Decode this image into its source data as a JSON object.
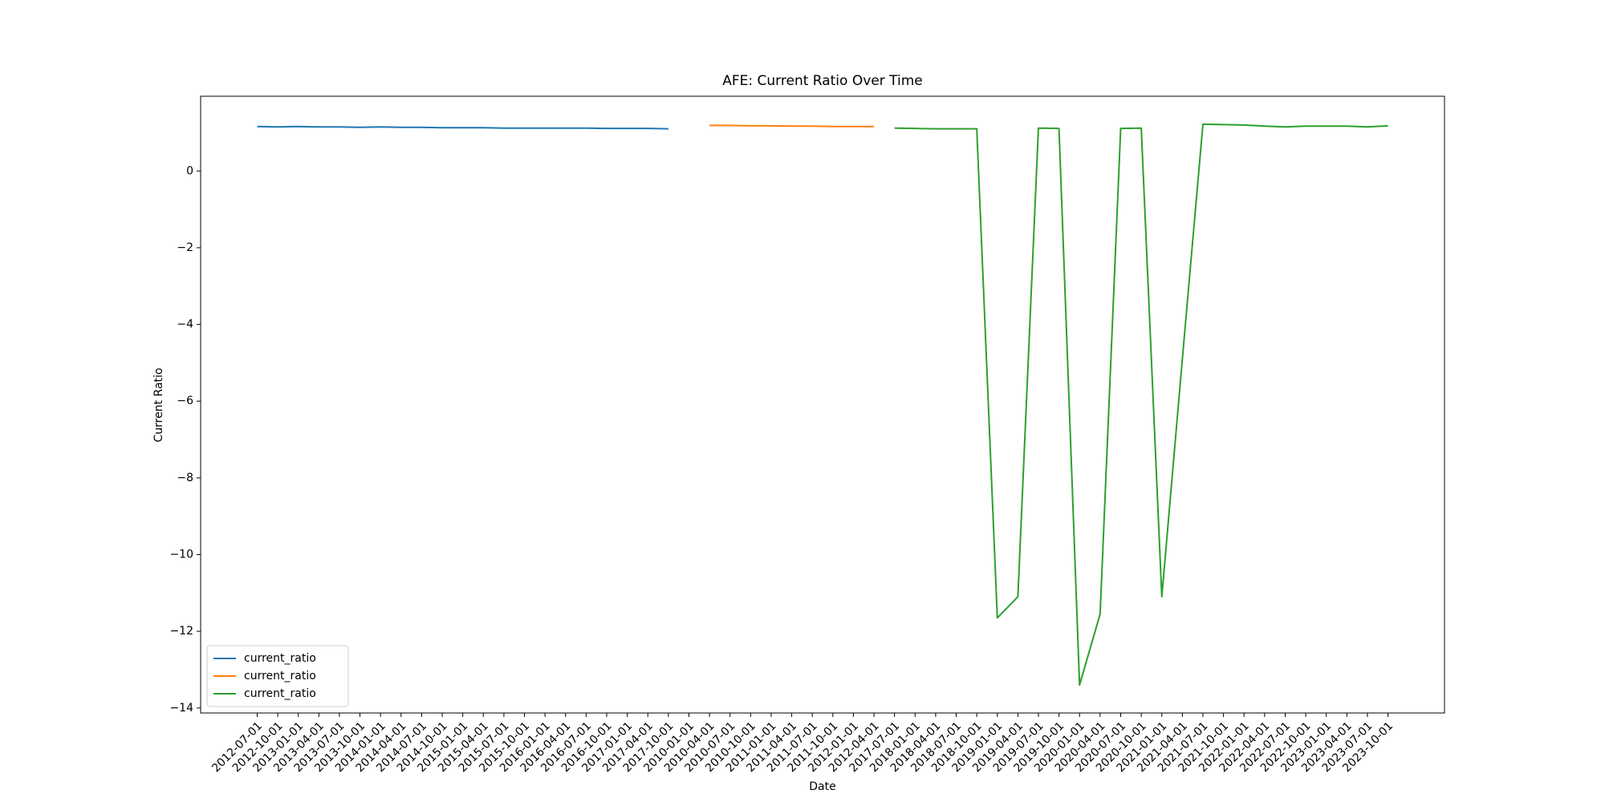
{
  "chart_data": {
    "type": "line",
    "title": "AFE: Current Ratio Over Time",
    "xlabel": "Date",
    "ylabel": "Current Ratio",
    "categories": [
      "2012-07-01",
      "2012-10-01",
      "2013-01-01",
      "2013-04-01",
      "2013-07-01",
      "2013-10-01",
      "2014-01-01",
      "2014-04-01",
      "2014-07-01",
      "2014-10-01",
      "2015-01-01",
      "2015-04-01",
      "2015-07-01",
      "2015-10-01",
      "2016-01-01",
      "2016-04-01",
      "2016-07-01",
      "2016-10-01",
      "2017-01-01",
      "2017-04-01",
      "2017-10-01",
      "2010-01-01",
      "2010-04-01",
      "2010-07-01",
      "2010-10-01",
      "2011-01-01",
      "2011-04-01",
      "2011-07-01",
      "2011-10-01",
      "2012-01-01",
      "2012-04-01",
      "2017-07-01",
      "2018-01-01",
      "2018-04-01",
      "2018-07-01",
      "2018-10-01",
      "2019-01-01",
      "2019-04-01",
      "2019-07-01",
      "2019-10-01",
      "2020-01-01",
      "2020-04-01",
      "2020-07-01",
      "2020-10-01",
      "2021-01-01",
      "2021-04-01",
      "2021-07-01",
      "2021-10-01",
      "2022-01-01",
      "2022-04-01",
      "2022-07-01",
      "2022-10-01",
      "2023-01-01",
      "2023-04-01",
      "2023-07-01",
      "2023-10-01"
    ],
    "series": [
      {
        "name": "current_ratio",
        "color": "#1f77b4",
        "values": [
          1.16,
          1.15,
          1.16,
          1.15,
          1.15,
          1.14,
          1.15,
          1.14,
          1.14,
          1.13,
          1.13,
          1.13,
          1.12,
          1.12,
          1.12,
          1.12,
          1.12,
          1.11,
          1.11,
          1.11,
          1.1,
          null,
          null,
          null,
          null,
          null,
          null,
          null,
          null,
          null,
          null,
          null,
          null,
          null,
          null,
          null,
          null,
          null,
          null,
          null,
          null,
          null,
          null,
          null,
          null,
          null,
          null,
          null,
          null,
          null,
          null,
          null,
          null,
          null,
          null,
          null
        ]
      },
      {
        "name": "current_ratio",
        "color": "#ff7f0e",
        "values": [
          null,
          null,
          null,
          null,
          null,
          null,
          null,
          null,
          null,
          null,
          null,
          null,
          null,
          null,
          null,
          null,
          null,
          null,
          null,
          null,
          null,
          null,
          1.19,
          1.19,
          1.18,
          1.18,
          1.17,
          1.17,
          1.16,
          1.16,
          1.16,
          null,
          null,
          null,
          null,
          null,
          null,
          null,
          null,
          null,
          null,
          null,
          null,
          null,
          null,
          null,
          null,
          null,
          null,
          null,
          null,
          null,
          null,
          null,
          null,
          null
        ]
      },
      {
        "name": "current_ratio",
        "color": "#2ca02c",
        "values": [
          null,
          null,
          null,
          null,
          null,
          null,
          null,
          null,
          null,
          null,
          null,
          null,
          null,
          null,
          null,
          null,
          null,
          null,
          null,
          null,
          null,
          null,
          null,
          null,
          null,
          null,
          null,
          null,
          null,
          null,
          null,
          1.12,
          1.11,
          1.1,
          1.1,
          1.1,
          -11.65,
          -11.1,
          1.12,
          1.11,
          -13.4,
          -11.55,
          1.11,
          1.12,
          -11.1,
          -4.9,
          1.22,
          1.21,
          1.2,
          1.17,
          1.15,
          1.17,
          1.17,
          1.17,
          1.15,
          1.18
        ]
      }
    ],
    "ylim": [
      -14.13,
      1.95
    ],
    "yticks": [
      {
        "value": -14,
        "label": "−14"
      },
      {
        "value": -12,
        "label": "−12"
      },
      {
        "value": -10,
        "label": "−10"
      },
      {
        "value": -8,
        "label": "−8"
      },
      {
        "value": -6,
        "label": "−6"
      },
      {
        "value": -4,
        "label": "−4"
      },
      {
        "value": -2,
        "label": "−2"
      },
      0
    ],
    "legend": "lower left"
  }
}
